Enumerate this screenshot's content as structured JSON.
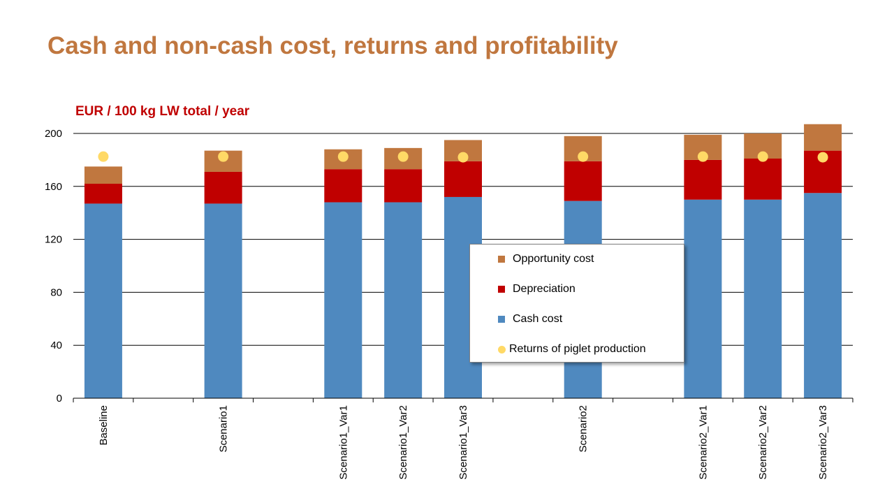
{
  "title": "Cash and non-cash cost, returns and profitability",
  "colors": {
    "title": "#c0773f",
    "unit_label": "#c00000",
    "cash_cost": "#4f89bf",
    "depreciation": "#c00000",
    "opportunity_cost": "#c0773f",
    "returns": "#ffd966",
    "gridline": "#000000"
  },
  "chart_data": {
    "type": "bar",
    "stacked": true,
    "unit_label": "EUR / 100 kg LW total / year",
    "categories": [
      "Baseline",
      "",
      "Scenario1",
      "",
      "Scenario1_Var1",
      "Scenario1_Var2",
      "Scenario1_Var3",
      "",
      "Scenario2",
      "",
      "Scenario2_Var1",
      "Scenario2_Var2",
      "Scenario2_Var3"
    ],
    "series": [
      {
        "name": "Cash cost",
        "values": [
          147,
          null,
          147,
          null,
          148,
          148,
          152,
          null,
          149,
          null,
          150,
          150,
          155
        ]
      },
      {
        "name": "Depreciation",
        "values": [
          15,
          null,
          24,
          null,
          25,
          25,
          27,
          null,
          30,
          null,
          30,
          31,
          32
        ]
      },
      {
        "name": "Opportunity cost",
        "values": [
          13,
          null,
          16,
          null,
          15,
          16,
          16,
          null,
          19,
          null,
          19,
          19,
          20
        ]
      }
    ],
    "markers": {
      "name": "Returns of piglet production",
      "values": [
        182.5,
        null,
        182.5,
        null,
        182.5,
        182.5,
        182,
        null,
        182.5,
        null,
        182.5,
        182.5,
        182
      ]
    },
    "ylim": [
      0,
      200
    ],
    "yticks": [
      0,
      40,
      80,
      120,
      160,
      200
    ],
    "grid": true,
    "legend": {
      "position": "center-right",
      "entries": [
        "Opportunity cost",
        "Depreciation",
        "Cash cost",
        "Returns of piglet production"
      ]
    }
  }
}
